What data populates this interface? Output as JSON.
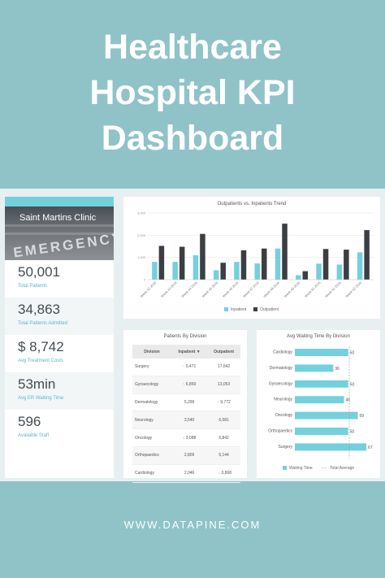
{
  "title": {
    "line1": "Healthcare",
    "line2": "Hospital KPI",
    "line3": "Dashboard"
  },
  "clinic": {
    "name": "Saint Martins Clinic",
    "sign_text": "EMERGENCY"
  },
  "kpis": [
    {
      "value": "50,001",
      "label": "Total Patients"
    },
    {
      "value": "34,863",
      "label": "Total Patients Admitted"
    },
    {
      "value": "$ 8,742",
      "label": "Avg Treatment Costs"
    },
    {
      "value": "53min",
      "label": "Avg ER Waiting Time"
    },
    {
      "value": "596",
      "label": "Available Staff"
    }
  ],
  "trend": {
    "title": "Outpatients vs. Inpatients Trend"
  },
  "division_table": {
    "title": "Patients By Division",
    "headers": [
      "Division",
      "Inpatient ▼",
      "Outpatient"
    ],
    "rows": [
      {
        "division": "Surgery",
        "inpatient": "9,471",
        "in_arrow": "up",
        "outpatient": "17,642",
        "out_arrow": ""
      },
      {
        "division": "Gynaecology",
        "inpatient": "6,869",
        "in_arrow": "up",
        "outpatient": "13,053",
        "out_arrow": ""
      },
      {
        "division": "Dermatology",
        "inpatient": "5,299",
        "in_arrow": "",
        "outpatient": "9,772",
        "out_arrow": "up"
      },
      {
        "division": "Neurology",
        "inpatient": "3,540",
        "in_arrow": "",
        "outpatient": "6,581",
        "out_arrow": ""
      },
      {
        "division": "Oncology",
        "inpatient": "3,088",
        "in_arrow": "down",
        "outpatient": "5,842",
        "out_arrow": ""
      },
      {
        "division": "Orthopaedics",
        "inpatient": "2,809",
        "in_arrow": "",
        "outpatient": "5,144",
        "out_arrow": ""
      },
      {
        "division": "Cardiology",
        "inpatient": "2,046",
        "in_arrow": "",
        "outpatient": "3,868",
        "out_arrow": "right"
      }
    ]
  },
  "footer": "WWW.DATAPINE.COM",
  "colors": {
    "background": "#8fc3c8",
    "inpatient": "#74d0dd",
    "outpatient": "#3b3e42",
    "accent": "#74d0dd"
  },
  "chart_data": [
    {
      "type": "bar",
      "title": "Outpatients vs. Inpatients Trend",
      "categories": [
        "Week 42 2016",
        "Week 43 2016",
        "Week 44 2016",
        "Week 45 2016",
        "Week 46 2016",
        "Week 47 2016",
        "Week 48 2016",
        "Week 49 2016",
        "Week 50 2016",
        "Week 51 2016",
        "Week 52 2016"
      ],
      "y_ticks": [
        "0",
        "1,000",
        "2,000",
        "3,000"
      ],
      "ylim": [
        0,
        3000
      ],
      "grid": true,
      "legend": "bottom",
      "series": [
        {
          "name": "Inpatient",
          "values": [
            800,
            800,
            1100,
            420,
            800,
            730,
            1400,
            200,
            720,
            680,
            1230
          ]
        },
        {
          "name": "Outpatient",
          "values": [
            1520,
            1480,
            2060,
            760,
            1320,
            1400,
            2520,
            380,
            1380,
            1350,
            2230
          ]
        }
      ]
    },
    {
      "type": "bar",
      "orientation": "horizontal",
      "title": "Avg Waiting Time By Division",
      "categories": [
        "Cardiology",
        "Dermatology",
        "Gynaecology",
        "Neurology",
        "Oncology",
        "Orthopaedics",
        "Surgery"
      ],
      "values": [
        50,
        36,
        50,
        46,
        59,
        50,
        67
      ],
      "average": 51,
      "xlim": [
        0,
        70
      ],
      "legend": "bottom",
      "series_names": [
        "Waiting Time",
        "Total Average"
      ]
    }
  ]
}
